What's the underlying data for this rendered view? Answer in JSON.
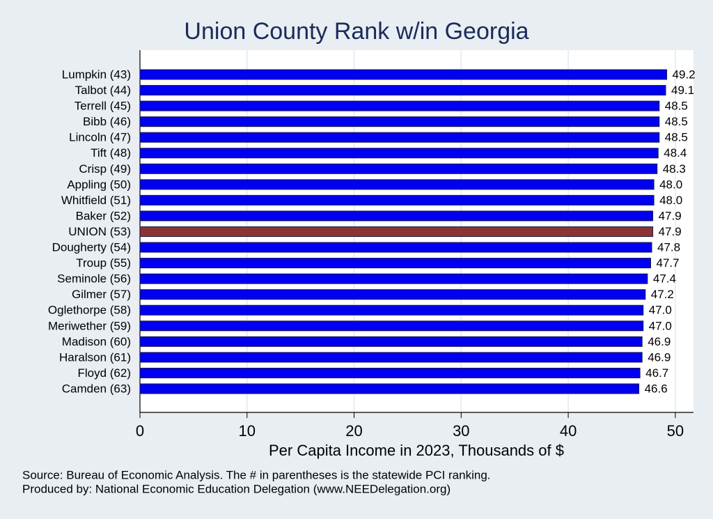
{
  "chart_data": {
    "type": "hbar",
    "title": "Union County Rank w/in Georgia",
    "x_label": "Per Capita Income in 2023, Thousands of $",
    "notes": [
      "Source: Bureau of Economic Analysis. The # in parentheses is the statewide PCI ranking.",
      "Produced by: National Economic Education Delegation (www.NEEDelegation.org)"
    ],
    "categories": [
      "Lumpkin (43)",
      "Talbot (44)",
      "Terrell (45)",
      "Bibb (46)",
      "Lincoln (47)",
      "Tift (48)",
      "Crisp (49)",
      "Appling (50)",
      "Whitfield (51)",
      "Baker (52)",
      "UNION (53)",
      "Dougherty (54)",
      "Troup (55)",
      "Seminole (56)",
      "Gilmer (57)",
      "Oglethorpe (58)",
      "Meriwether (59)",
      "Madison (60)",
      "Haralson (61)",
      "Floyd (62)",
      "Camden (63)"
    ],
    "values": [
      49.2,
      49.1,
      48.5,
      48.5,
      48.5,
      48.4,
      48.3,
      48.0,
      48.0,
      47.9,
      47.9,
      47.8,
      47.7,
      47.4,
      47.2,
      47.0,
      47.0,
      46.9,
      46.9,
      46.7,
      46.6
    ],
    "value_labels": [
      "49.2",
      "49.1",
      "48.5",
      "48.5",
      "48.5",
      "48.4",
      "48.3",
      "48.0",
      "48.0",
      "47.9",
      "47.9",
      "47.8",
      "47.7",
      "47.4",
      "47.2",
      "47.0",
      "47.0",
      "46.9",
      "46.9",
      "46.7",
      "46.6"
    ],
    "colors": [
      "#0000f0",
      "#0000f0",
      "#0000f0",
      "#0000f0",
      "#0000f0",
      "#0000f0",
      "#0000f0",
      "#0000f0",
      "#0000f0",
      "#0000f0",
      "#8b3434",
      "#0000f0",
      "#0000f0",
      "#0000f0",
      "#0000f0",
      "#0000f0",
      "#0000f0",
      "#0000f0",
      "#0000f0",
      "#0000f0",
      "#0000f0"
    ],
    "xlim": [
      0,
      51.7
    ],
    "xticks": [
      0,
      10,
      20,
      30,
      40,
      50
    ],
    "grid": true
  }
}
